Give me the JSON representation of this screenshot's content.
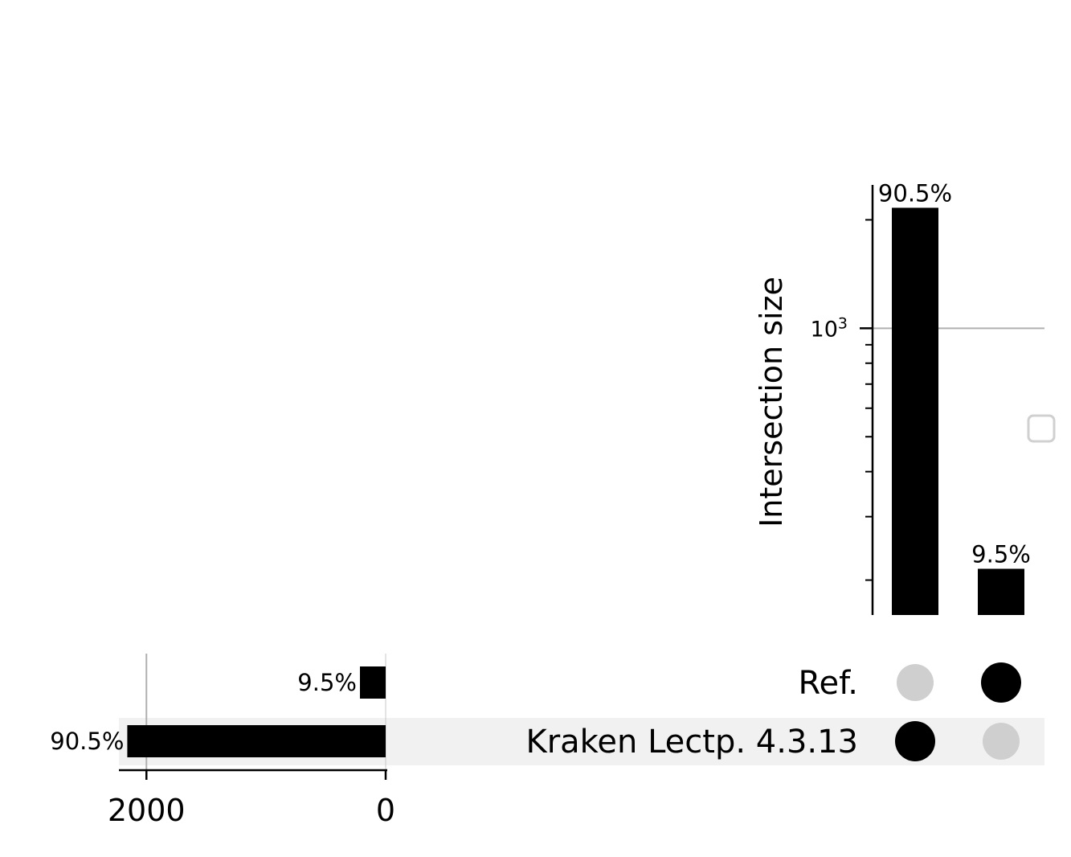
{
  "chart_data": [
    {
      "type": "bar",
      "orientation": "vertical",
      "ylabel": "Intersection size",
      "yscale": "log",
      "ylim": [
        160,
        2500
      ],
      "y_major_tick": {
        "value": 1000,
        "base": "10",
        "exponent": "3"
      },
      "y_minor_ticks": [
        200,
        300,
        400,
        500,
        600,
        700,
        800,
        900,
        2000
      ],
      "grid": "horizontal at 10^3",
      "categories": [
        "Kraken Lectp. 4.3.13 only",
        "Ref. only"
      ],
      "values": [
        2160,
        215
      ],
      "bar_labels": [
        "90.5%",
        "9.5%"
      ]
    },
    {
      "type": "bar",
      "orientation": "horizontal",
      "direction": "right-to-left",
      "categories": [
        "Ref.",
        "Kraken Lectp. 4.3.13"
      ],
      "values": [
        215,
        2160
      ],
      "bar_labels": [
        "9.5%",
        "90.5%"
      ],
      "xlim": [
        2230,
        0
      ],
      "xticks": [
        "2000",
        "0"
      ],
      "grid": "vertical at 2000"
    }
  ],
  "matrix": {
    "rows": [
      "Ref.",
      "Kraken Lectp. 4.3.13"
    ],
    "columns": [
      {
        "Ref.": false,
        "Kraken Lectp. 4.3.13": true
      },
      {
        "Ref.": true,
        "Kraken Lectp. 4.3.13": false
      }
    ]
  },
  "colors": {
    "bar": "#000000",
    "dot_active": "#000000",
    "dot_inactive": "#cfcfcf",
    "row_shade": "#f1f1f1",
    "grid": "#b0b0b0",
    "legend_box": "#d0d0d0"
  }
}
